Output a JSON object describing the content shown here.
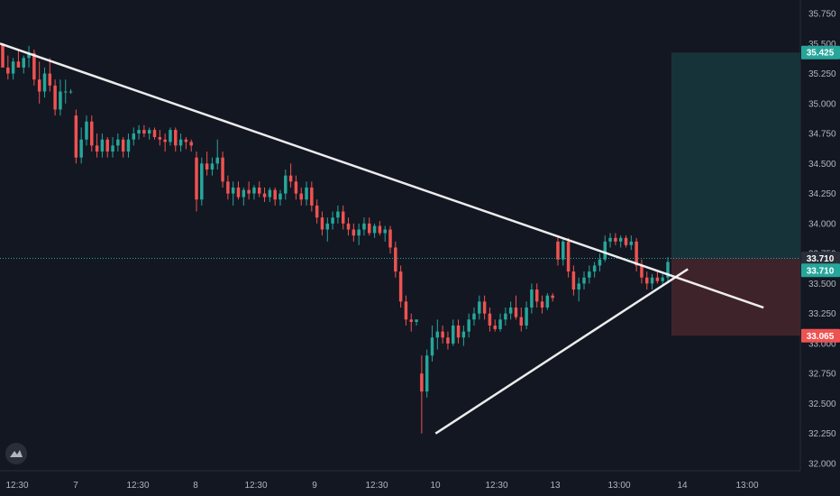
{
  "chart_data": {
    "type": "candlestick",
    "y_axis": {
      "ticks": [
        "35.750",
        "35.500",
        "35.250",
        "35.000",
        "34.750",
        "34.500",
        "34.250",
        "34.000",
        "33.750",
        "33.500",
        "33.250",
        "33.000",
        "32.750",
        "32.500",
        "32.250",
        "32.000"
      ],
      "range": [
        31.95,
        35.85
      ]
    },
    "x_axis": {
      "ticks": [
        "12:30",
        "7",
        "12:30",
        "8",
        "12:30",
        "9",
        "12:30",
        "10",
        "12:30",
        "13",
        "13:00",
        "14",
        "13:00"
      ]
    },
    "price_tags": [
      {
        "label": "35.425",
        "value": 35.425,
        "color": "#26a69a"
      },
      {
        "label": "33.710",
        "value": 33.71,
        "color": "#2a2e39"
      },
      {
        "label": "33.710",
        "value": 33.61,
        "color": "#26a69a"
      },
      {
        "label": "33.065",
        "value": 33.065,
        "color": "#ef5350"
      }
    ],
    "current_price": 33.71,
    "position": {
      "entry": 33.71,
      "target": 35.425,
      "stop": 33.065
    },
    "series": [
      {
        "type": "candles",
        "values": [
          [
            35.5,
            35.5,
            35.3,
            35.3
          ],
          [
            35.3,
            35.4,
            35.2,
            35.25
          ],
          [
            35.25,
            35.38,
            35.2,
            35.35
          ],
          [
            35.35,
            35.45,
            35.3,
            35.3
          ],
          [
            35.3,
            35.4,
            35.25,
            35.38
          ],
          [
            35.38,
            35.48,
            35.3,
            35.42
          ],
          [
            35.42,
            35.45,
            35.15,
            35.2
          ],
          [
            35.2,
            35.35,
            35.0,
            35.1
          ],
          [
            35.1,
            35.3,
            35.05,
            35.25
          ],
          [
            35.25,
            35.38,
            35.1,
            35.15
          ],
          [
            35.15,
            35.2,
            34.9,
            34.95
          ],
          [
            34.95,
            35.2,
            34.9,
            35.1
          ],
          [
            35.1,
            35.2,
            35.0,
            35.1
          ],
          [
            35.1,
            35.12,
            35.08,
            35.1
          ],
          [
            34.9,
            34.95,
            34.5,
            34.55
          ],
          [
            34.55,
            34.8,
            34.5,
            34.7
          ],
          [
            34.7,
            34.9,
            34.65,
            34.85
          ],
          [
            34.85,
            34.9,
            34.6,
            34.65
          ],
          [
            34.65,
            34.75,
            34.55,
            34.6
          ],
          [
            34.6,
            34.75,
            34.55,
            34.7
          ],
          [
            34.7,
            34.72,
            34.55,
            34.6
          ],
          [
            34.6,
            34.72,
            34.55,
            34.65
          ],
          [
            34.65,
            34.75,
            34.6,
            34.7
          ],
          [
            34.7,
            34.72,
            34.55,
            34.6
          ],
          [
            34.6,
            34.75,
            34.55,
            34.7
          ],
          [
            34.7,
            34.8,
            34.65,
            34.75
          ],
          [
            34.75,
            34.82,
            34.7,
            34.78
          ],
          [
            34.78,
            34.82,
            34.72,
            34.75
          ],
          [
            34.75,
            34.8,
            34.7,
            34.78
          ],
          [
            34.78,
            34.8,
            34.7,
            34.72
          ],
          [
            34.72,
            34.78,
            34.65,
            34.7
          ],
          [
            34.7,
            34.75,
            34.6,
            34.68
          ],
          [
            34.68,
            34.8,
            34.65,
            34.78
          ],
          [
            34.78,
            34.8,
            34.6,
            34.65
          ],
          [
            34.65,
            34.75,
            34.6,
            34.7
          ],
          [
            34.7,
            34.72,
            34.62,
            34.68
          ],
          [
            34.68,
            34.7,
            34.6,
            34.65
          ],
          [
            34.55,
            34.6,
            34.1,
            34.2
          ],
          [
            34.2,
            34.55,
            34.15,
            34.5
          ],
          [
            34.5,
            34.6,
            34.4,
            34.45
          ],
          [
            34.45,
            34.55,
            34.4,
            34.5
          ],
          [
            34.5,
            34.7,
            34.45,
            34.55
          ],
          [
            34.55,
            34.6,
            34.3,
            34.35
          ],
          [
            34.35,
            34.4,
            34.2,
            34.25
          ],
          [
            34.25,
            34.35,
            34.15,
            34.3
          ],
          [
            34.3,
            34.35,
            34.2,
            34.22
          ],
          [
            34.22,
            34.3,
            34.15,
            34.28
          ],
          [
            34.28,
            34.35,
            34.2,
            34.25
          ],
          [
            34.25,
            34.32,
            34.2,
            34.3
          ],
          [
            34.3,
            34.35,
            34.22,
            34.25
          ],
          [
            34.25,
            34.3,
            34.18,
            34.22
          ],
          [
            34.22,
            34.3,
            34.18,
            34.28
          ],
          [
            34.28,
            34.3,
            34.15,
            34.2
          ],
          [
            34.2,
            34.28,
            34.15,
            34.25
          ],
          [
            34.25,
            34.45,
            34.2,
            34.4
          ],
          [
            34.4,
            34.5,
            34.3,
            34.35
          ],
          [
            34.35,
            34.4,
            34.2,
            34.25
          ],
          [
            34.25,
            34.3,
            34.15,
            34.2
          ],
          [
            34.2,
            34.35,
            34.15,
            34.3
          ],
          [
            34.3,
            34.35,
            34.1,
            34.15
          ],
          [
            34.15,
            34.2,
            34.0,
            34.05
          ],
          [
            34.05,
            34.1,
            33.9,
            33.95
          ],
          [
            33.95,
            34.05,
            33.85,
            34.0
          ],
          [
            34.0,
            34.1,
            33.95,
            34.05
          ],
          [
            34.05,
            34.15,
            34.0,
            34.1
          ],
          [
            34.1,
            34.15,
            33.95,
            34.0
          ],
          [
            34.0,
            34.05,
            33.9,
            33.95
          ],
          [
            33.95,
            34.0,
            33.85,
            33.9
          ],
          [
            33.9,
            34.0,
            33.82,
            33.95
          ],
          [
            33.95,
            34.05,
            33.9,
            34.0
          ],
          [
            34.0,
            34.05,
            33.9,
            33.92
          ],
          [
            33.92,
            34.0,
            33.88,
            33.98
          ],
          [
            33.98,
            34.02,
            33.9,
            33.92
          ],
          [
            33.92,
            33.98,
            33.85,
            33.95
          ],
          [
            33.95,
            33.98,
            33.75,
            33.8
          ],
          [
            33.8,
            33.85,
            33.55,
            33.6
          ],
          [
            33.6,
            33.65,
            33.3,
            33.35
          ],
          [
            33.35,
            33.4,
            33.15,
            33.2
          ],
          [
            33.2,
            33.25,
            33.1,
            33.18
          ],
          [
            33.18,
            33.2,
            33.15,
            33.2
          ],
          [
            32.75,
            32.9,
            32.25,
            32.6
          ],
          [
            32.6,
            32.95,
            32.55,
            32.9
          ],
          [
            32.9,
            33.15,
            32.85,
            33.05
          ],
          [
            33.05,
            33.2,
            32.95,
            33.1
          ],
          [
            33.1,
            33.15,
            33.0,
            33.05
          ],
          [
            33.05,
            33.1,
            32.95,
            33.0
          ],
          [
            33.0,
            33.2,
            32.98,
            33.15
          ],
          [
            33.15,
            33.2,
            33.0,
            33.05
          ],
          [
            33.05,
            33.15,
            32.98,
            33.1
          ],
          [
            33.1,
            33.25,
            33.05,
            33.2
          ],
          [
            33.2,
            33.3,
            33.15,
            33.25
          ],
          [
            33.25,
            33.4,
            33.2,
            33.35
          ],
          [
            33.35,
            33.4,
            33.2,
            33.25
          ],
          [
            33.25,
            33.3,
            33.1,
            33.15
          ],
          [
            33.15,
            33.2,
            33.1,
            33.12
          ],
          [
            33.12,
            33.25,
            33.1,
            33.2
          ],
          [
            33.2,
            33.3,
            33.15,
            33.25
          ],
          [
            33.25,
            33.35,
            33.2,
            33.3
          ],
          [
            33.3,
            33.4,
            33.2,
            33.22
          ],
          [
            33.22,
            33.3,
            33.1,
            33.15
          ],
          [
            33.15,
            33.35,
            33.12,
            33.3
          ],
          [
            33.3,
            33.5,
            33.25,
            33.45
          ],
          [
            33.45,
            33.5,
            33.3,
            33.35
          ],
          [
            33.35,
            33.4,
            33.25,
            33.3
          ],
          [
            33.3,
            33.42,
            33.28,
            33.4
          ],
          [
            33.4,
            33.42,
            33.35,
            33.38
          ],
          [
            33.85,
            33.9,
            33.65,
            33.7
          ],
          [
            33.7,
            33.88,
            33.65,
            33.85
          ],
          [
            33.85,
            33.88,
            33.55,
            33.6
          ],
          [
            33.6,
            33.65,
            33.4,
            33.45
          ],
          [
            33.45,
            33.55,
            33.35,
            33.5
          ],
          [
            33.5,
            33.6,
            33.45,
            33.55
          ],
          [
            33.55,
            33.65,
            33.5,
            33.6
          ],
          [
            33.6,
            33.68,
            33.55,
            33.65
          ],
          [
            33.65,
            33.75,
            33.6,
            33.7
          ],
          [
            33.7,
            33.9,
            33.68,
            33.85
          ],
          [
            33.85,
            33.92,
            33.8,
            33.88
          ],
          [
            33.88,
            33.92,
            33.82,
            33.85
          ],
          [
            33.85,
            33.9,
            33.8,
            33.88
          ],
          [
            33.88,
            33.9,
            33.8,
            33.82
          ],
          [
            33.82,
            33.9,
            33.78,
            33.85
          ],
          [
            33.85,
            33.88,
            33.6,
            33.65
          ],
          [
            33.65,
            33.7,
            33.5,
            33.55
          ],
          [
            33.55,
            33.6,
            33.45,
            33.5
          ],
          [
            33.5,
            33.58,
            33.45,
            33.55
          ],
          [
            33.55,
            33.6,
            33.5,
            33.52
          ],
          [
            33.52,
            33.58,
            33.48,
            33.55
          ],
          [
            33.55,
            33.72,
            33.5,
            33.68
          ]
        ]
      }
    ],
    "trendlines": [
      {
        "name": "descending resistance",
        "points": [
          [
            0,
            35.5
          ],
          [
            0.908,
            33.3
          ]
        ]
      },
      {
        "name": "ascending support",
        "points": [
          [
            0.518,
            32.25
          ],
          [
            0.818,
            33.62
          ]
        ]
      }
    ]
  }
}
